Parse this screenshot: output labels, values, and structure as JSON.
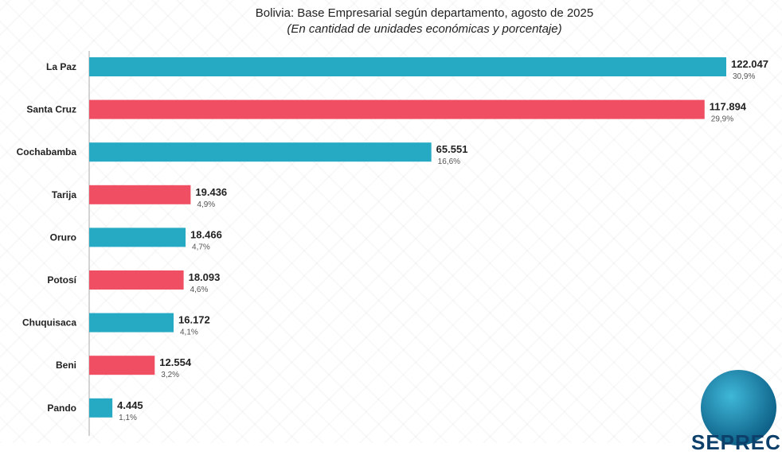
{
  "chart_data": {
    "type": "bar",
    "orientation": "horizontal",
    "title": "Bolivia: Base Empresarial según departamento, agosto de 2025",
    "subtitle": "(En cantidad de unidades económicas y porcentaje)",
    "categories": [
      "La Paz",
      "Santa Cruz",
      "Cochabamba",
      "Tarija",
      "Oruro",
      "Potosí",
      "Chuquisaca",
      "Beni",
      "Pando"
    ],
    "values": [
      122047,
      117894,
      65551,
      19436,
      18466,
      18093,
      16172,
      12554,
      4445
    ],
    "value_labels": [
      "122.047",
      "117.894",
      "65.551",
      "19.436",
      "18.466",
      "18.093",
      "16.172",
      "12.554",
      "4.445"
    ],
    "percent_labels": [
      "30,9%",
      "29,9%",
      "16,6%",
      "4,9%",
      "4,7%",
      "4,6%",
      "4,1%",
      "3,2%",
      "1,1%"
    ],
    "bar_colors": [
      "#26a9c2",
      "#ef4e63",
      "#26a9c2",
      "#ef4e63",
      "#26a9c2",
      "#ef4e63",
      "#26a9c2",
      "#ef4e63",
      "#26a9c2"
    ],
    "xlim": [
      0,
      122047
    ],
    "grid": false
  },
  "logo": {
    "text": "SEPREC"
  }
}
